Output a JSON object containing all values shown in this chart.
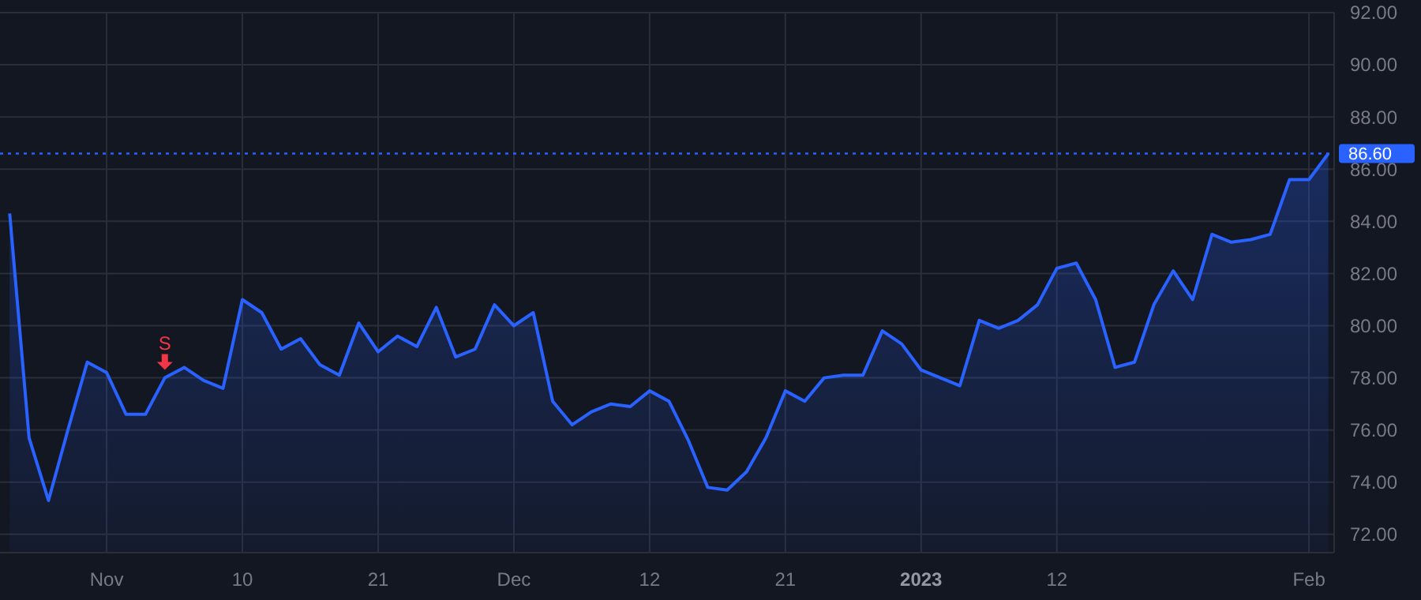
{
  "chart_data": {
    "type": "area",
    "categories": [
      null,
      null,
      null,
      null,
      null,
      "Nov",
      null,
      null,
      null,
      null,
      null,
      null,
      "10",
      null,
      null,
      null,
      null,
      null,
      null,
      "21",
      null,
      null,
      null,
      null,
      null,
      null,
      "Dec",
      null,
      null,
      null,
      null,
      null,
      null,
      "12",
      null,
      null,
      null,
      null,
      null,
      null,
      "21",
      null,
      null,
      null,
      null,
      null,
      null,
      "2023",
      null,
      null,
      null,
      null,
      null,
      null,
      "12",
      null,
      null,
      null,
      null,
      null,
      null,
      null,
      null,
      null,
      null,
      null,
      null,
      "Feb",
      null
    ],
    "series": [
      {
        "color": "#2962ff",
        "values": [
          84.3,
          75.7,
          73.3,
          76.0,
          78.6,
          78.2,
          76.6,
          76.6,
          78.0,
          78.4,
          77.9,
          77.6,
          81.0,
          80.5,
          79.1,
          79.5,
          78.5,
          78.1,
          80.1,
          79.0,
          79.6,
          79.2,
          80.7,
          78.8,
          79.1,
          80.8,
          80.0,
          80.5,
          77.1,
          76.2,
          76.7,
          77.0,
          76.9,
          77.5,
          77.1,
          75.6,
          73.8,
          73.7,
          74.4,
          75.7,
          77.5,
          77.1,
          78.0,
          78.1,
          78.1,
          79.8,
          79.3,
          78.3,
          78.0,
          77.7,
          80.2,
          79.9,
          80.2,
          80.8,
          82.2,
          82.4,
          81.0,
          78.4,
          78.6,
          80.8,
          82.1,
          81.0,
          83.5,
          83.2,
          83.3,
          83.5,
          85.6,
          85.6,
          86.6
        ]
      }
    ],
    "ylim": [
      71.3,
      92
    ],
    "yticks": [
      {
        "value": 72,
        "label": "72.00"
      },
      {
        "value": 74,
        "label": "74.00"
      },
      {
        "value": 76,
        "label": "76.00"
      },
      {
        "value": 78,
        "label": "78.00"
      },
      {
        "value": 80,
        "label": "80.00"
      },
      {
        "value": 82,
        "label": "82.00"
      },
      {
        "value": 84,
        "label": "84.00"
      },
      {
        "value": 86,
        "label": "86.00"
      },
      {
        "value": 88,
        "label": "88.00"
      },
      {
        "value": 90,
        "label": "90.00"
      },
      {
        "value": 92,
        "label": "92.00"
      }
    ],
    "grid": true,
    "ref_lines": [
      {
        "axis": "y",
        "value": 86.6,
        "label": "86.60",
        "color": "#2962ff",
        "line_style": "dotted"
      }
    ],
    "annotations": [
      {
        "text": "S",
        "y": 78
      }
    ]
  }
}
